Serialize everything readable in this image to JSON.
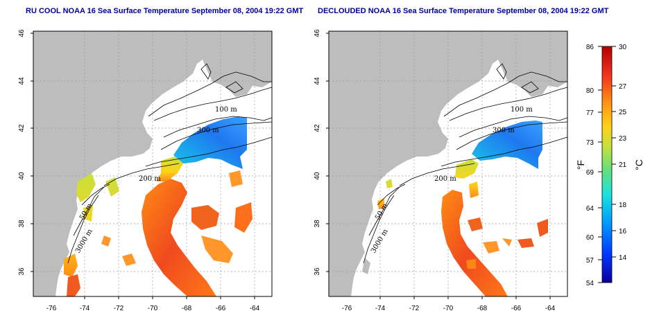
{
  "panels": [
    {
      "title": "RU COOL NOAA 16 Sea Surface Temperature September 08, 2004 19:22 GMT"
    },
    {
      "title": "DECLOUDED NOAA 16 Sea Surface Temperature September 08, 2004 19:22 GMT"
    }
  ],
  "axes": {
    "lon_ticks": [
      "-76",
      "-74",
      "-72",
      "-70",
      "-68",
      "-66",
      "-64"
    ],
    "lat_ticks": [
      "36",
      "38",
      "40",
      "42",
      "44",
      "46"
    ]
  },
  "contour_labels": [
    "100 m",
    "300 m",
    "200 m",
    "50 m",
    "3000 m"
  ],
  "colorbar": {
    "fahrenheit_label": "°F",
    "celsius_label": "°C",
    "fahrenheit_ticks": [
      "86",
      "80",
      "77",
      "73",
      "69",
      "64",
      "60",
      "57",
      "54"
    ],
    "celsius_ticks": [
      "30",
      "27",
      "25",
      "23",
      "21",
      "18",
      "16",
      "14"
    ],
    "colors": [
      "#08009c",
      "#0036ff",
      "#0099ff",
      "#19e2e0",
      "#66e07a",
      "#c8e03c",
      "#ffd21a",
      "#ff8c14",
      "#f0321e",
      "#b40000"
    ]
  }
}
